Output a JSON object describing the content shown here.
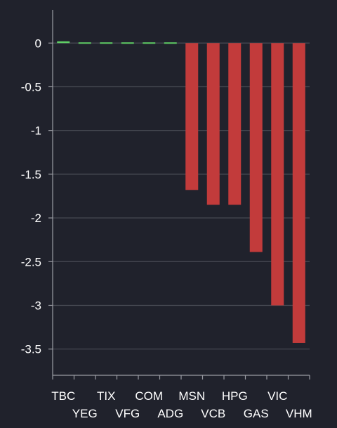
{
  "chart_data": {
    "type": "bar",
    "categories": [
      "TBC",
      "YEG",
      "TIX",
      "VFG",
      "COM",
      "ADG",
      "MSN",
      "VCB",
      "HPG",
      "GAS",
      "VIC",
      "VHM"
    ],
    "values": [
      0.02,
      0.0,
      0.0,
      0.0,
      0,
      0,
      -1.68,
      -1.85,
      -1.85,
      -2.39,
      -3.0,
      -3.43
    ],
    "yticks": [
      0,
      -0.5,
      -1,
      -1.5,
      -2,
      -2.5,
      -3,
      -3.5
    ],
    "ytick_labels": [
      "0",
      "-0.5",
      "-1",
      "-1.5",
      "-2",
      "-2.5",
      "-3",
      "-3.5"
    ],
    "ylim": [
      -3.8,
      0.38
    ],
    "grid": true,
    "title": "",
    "xlabel": "",
    "ylabel": "",
    "colors": {
      "positive": "#5fcf65",
      "negative": "#c23b3b",
      "background": "#20222c",
      "grid": "#4a4d56",
      "axis": "#9a9ca3",
      "text": "#ffffff"
    }
  }
}
